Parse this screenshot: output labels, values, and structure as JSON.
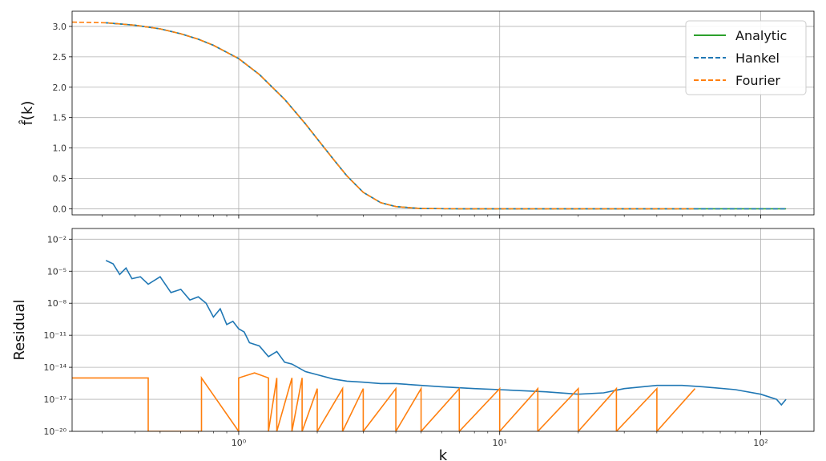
{
  "chart_data": [
    {
      "type": "line",
      "ylabel": "f̂(k)",
      "x_scale": "log",
      "xlim": [
        0.23,
        160
      ],
      "ylim": [
        -0.1,
        3.25
      ],
      "yticks": [
        "0.0",
        "0.5",
        "1.0",
        "1.5",
        "2.0",
        "2.5",
        "3.0"
      ],
      "ytick_values": [
        0,
        0.5,
        1.0,
        1.5,
        2.0,
        2.5,
        3.0
      ],
      "grid": true,
      "legend_position": "top-right",
      "legend": [
        "Analytic",
        "Hankel",
        "Fourier"
      ],
      "series": [
        {
          "name": "Analytic",
          "color": "#2ca02c",
          "dash": "solid",
          "x": [
            0.31,
            0.4,
            0.5,
            0.6,
            0.7,
            0.8,
            1.0,
            1.2,
            1.5,
            1.8,
            2.0,
            2.3,
            2.6,
            3.0,
            3.5,
            4.0,
            5.0,
            7.0,
            10,
            20,
            50,
            100,
            125
          ],
          "y": [
            3.06,
            3.02,
            2.96,
            2.88,
            2.79,
            2.69,
            2.47,
            2.21,
            1.8,
            1.4,
            1.15,
            0.82,
            0.54,
            0.27,
            0.1,
            0.036,
            0.004,
            0,
            0,
            0,
            0,
            0,
            0
          ]
        },
        {
          "name": "Hankel",
          "color": "#1f77b4",
          "dash": "dashed",
          "x": [
            0.31,
            0.4,
            0.5,
            0.6,
            0.7,
            0.8,
            1.0,
            1.2,
            1.5,
            1.8,
            2.0,
            2.3,
            2.6,
            3.0,
            3.5,
            4.0,
            5.0,
            7.0,
            10,
            20,
            50,
            100,
            125
          ],
          "y": [
            3.06,
            3.02,
            2.96,
            2.88,
            2.79,
            2.69,
            2.47,
            2.21,
            1.8,
            1.4,
            1.15,
            0.82,
            0.54,
            0.27,
            0.1,
            0.036,
            0.004,
            0,
            0,
            0,
            0,
            0,
            0
          ]
        },
        {
          "name": "Fourier",
          "color": "#ff7f0e",
          "dash": "dashed",
          "x": [
            0.23,
            0.31,
            0.4,
            0.5,
            0.6,
            0.7,
            0.8,
            1.0,
            1.2,
            1.5,
            1.8,
            2.0,
            2.3,
            2.6,
            3.0,
            3.5,
            4.0,
            5.0,
            7.0,
            10,
            20,
            40,
            56
          ],
          "y": [
            3.07,
            3.06,
            3.02,
            2.96,
            2.88,
            2.79,
            2.69,
            2.47,
            2.21,
            1.8,
            1.4,
            1.15,
            0.82,
            0.54,
            0.27,
            0.1,
            0.036,
            0.004,
            0,
            0,
            0,
            0,
            0
          ]
        }
      ]
    },
    {
      "type": "line",
      "ylabel": "Residual",
      "x_scale": "log",
      "y_scale": "log",
      "xlim": [
        0.23,
        160
      ],
      "ylim": [
        1e-20,
        0.1
      ],
      "yticks": [
        "10⁻²⁰",
        "10⁻¹⁷",
        "10⁻¹⁴",
        "10⁻¹¹",
        "10⁻⁸",
        "10⁻⁵",
        "10⁻²"
      ],
      "ytick_values": [
        1e-20,
        1e-17,
        1e-14,
        1e-11,
        1e-08,
        1e-05,
        0.01
      ],
      "xticks": [
        "10⁰",
        "10¹",
        "10²"
      ],
      "xtick_values": [
        1,
        10,
        100
      ],
      "xlabel": "k",
      "grid": true,
      "series": [
        {
          "name": "Hankel",
          "color": "#1f77b4",
          "x": [
            0.31,
            0.33,
            0.35,
            0.37,
            0.39,
            0.42,
            0.45,
            0.5,
            0.55,
            0.6,
            0.65,
            0.7,
            0.75,
            0.8,
            0.85,
            0.9,
            0.95,
            1.0,
            1.05,
            1.1,
            1.2,
            1.3,
            1.4,
            1.5,
            1.6,
            1.8,
            2.0,
            2.3,
            2.6,
            3.0,
            3.5,
            4.0,
            5.0,
            6.0,
            8.0,
            10,
            15,
            20,
            25,
            30,
            40,
            50,
            60,
            80,
            100,
            115,
            120,
            125
          ],
          "y": [
            0.0001,
            5e-05,
            5e-06,
            2e-05,
            2e-06,
            3e-06,
            6e-07,
            3e-06,
            1e-07,
            2e-07,
            2e-08,
            4e-08,
            1e-08,
            5e-10,
            3e-09,
            1e-10,
            2e-10,
            4e-11,
            2e-11,
            2e-12,
            1e-12,
            1e-13,
            3e-13,
            3e-14,
            2e-14,
            4e-15,
            2e-15,
            8e-16,
            5e-16,
            4e-16,
            3e-16,
            3e-16,
            2e-16,
            1.5e-16,
            1e-16,
            8e-17,
            5e-17,
            3e-17,
            4e-17,
            1e-16,
            2e-16,
            2e-16,
            1.5e-16,
            8e-17,
            3e-17,
            1e-17,
            3e-18,
            1e-17
          ]
        },
        {
          "name": "Fourier",
          "color": "#ff7f0e",
          "x": [
            0.23,
            0.45,
            0.45,
            0.72,
            0.72,
            1.0,
            1.0,
            1.15,
            1.3,
            1.3,
            1.4,
            1.4,
            1.6,
            1.6,
            1.75,
            1.75,
            2.0,
            2.0,
            2.5,
            2.5,
            3.0,
            3.0,
            4.0,
            4.0,
            5.0,
            5.0,
            7.0,
            7.0,
            10,
            10,
            14,
            14,
            20,
            20,
            28,
            28,
            40,
            40,
            56
          ],
          "y": [
            1e-15,
            1e-15,
            1e-20,
            1e-20,
            1e-15,
            1e-20,
            1e-15,
            3e-15,
            1e-15,
            1e-20,
            1e-15,
            1e-20,
            1e-15,
            1e-20,
            1e-15,
            1e-20,
            1e-16,
            1e-20,
            1e-16,
            1e-20,
            1e-16,
            1e-20,
            1e-16,
            1e-20,
            1e-16,
            1e-20,
            1e-16,
            1e-20,
            1e-16,
            1e-20,
            1e-16,
            1e-20,
            1e-16,
            1e-20,
            1e-16,
            1e-20,
            1e-16,
            1e-20,
            1e-16
          ]
        }
      ]
    }
  ]
}
